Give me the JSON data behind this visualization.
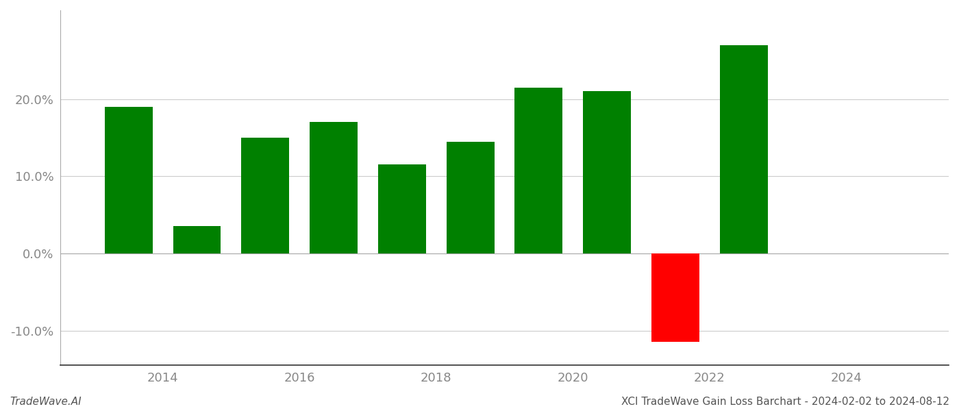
{
  "years": [
    2013.5,
    2014.5,
    2015.5,
    2016.5,
    2017.5,
    2018.5,
    2019.5,
    2020.5,
    2021.5,
    2022.5
  ],
  "values": [
    0.19,
    0.035,
    0.15,
    0.17,
    0.115,
    0.145,
    0.215,
    0.21,
    -0.115,
    0.27
  ],
  "colors": [
    "#008000",
    "#008000",
    "#008000",
    "#008000",
    "#008000",
    "#008000",
    "#008000",
    "#008000",
    "#ff0000",
    "#008000"
  ],
  "xlim": [
    2012.5,
    2025.5
  ],
  "ylim": [
    -0.145,
    0.315
  ],
  "yticks": [
    -0.1,
    0.0,
    0.1,
    0.2
  ],
  "xticks": [
    2014,
    2016,
    2018,
    2020,
    2022,
    2024
  ],
  "footer_left": "TradeWave.AI",
  "footer_right": "XCI TradeWave Gain Loss Barchart - 2024-02-02 to 2024-08-12",
  "background_color": "#ffffff",
  "bar_width": 0.7,
  "grid_color": "#cccccc",
  "tick_color": "#888888",
  "label_fontsize": 13,
  "footer_fontsize": 11
}
